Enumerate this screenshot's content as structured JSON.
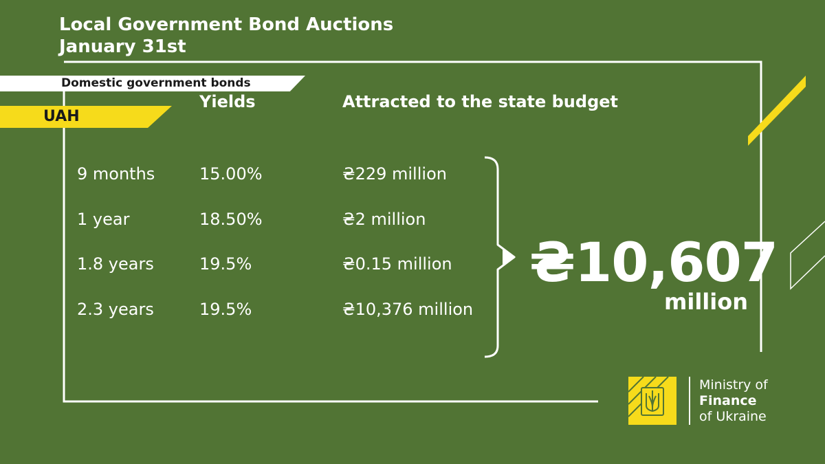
{
  "header": {
    "title_line1": "Local Government Bond Auctions",
    "title_line2": "January 31st"
  },
  "tags": {
    "category": "Domestic government bonds",
    "currency": "UAH"
  },
  "table": {
    "col_yields": "Yields",
    "col_attracted": "Attracted to the state budget",
    "rows": [
      {
        "term": "9 months",
        "yield": "15.00%",
        "attracted": "₴229 million"
      },
      {
        "term": "1 year",
        "yield": "18.50%",
        "attracted": "₴2 million"
      },
      {
        "term": "1.8 years",
        "yield": "19.5%",
        "attracted": "₴0.15 million"
      },
      {
        "term": "2.3 years",
        "yield": "19.5%",
        "attracted": "₴10,376 million"
      }
    ]
  },
  "total": {
    "amount": "₴10,607",
    "unit": "million"
  },
  "logo": {
    "line1": "Ministry of",
    "line2": "Finance",
    "line3": "of Ukraine"
  },
  "colors": {
    "background": "#517434",
    "accent_yellow": "#f6db1b",
    "text": "#ffffff"
  }
}
